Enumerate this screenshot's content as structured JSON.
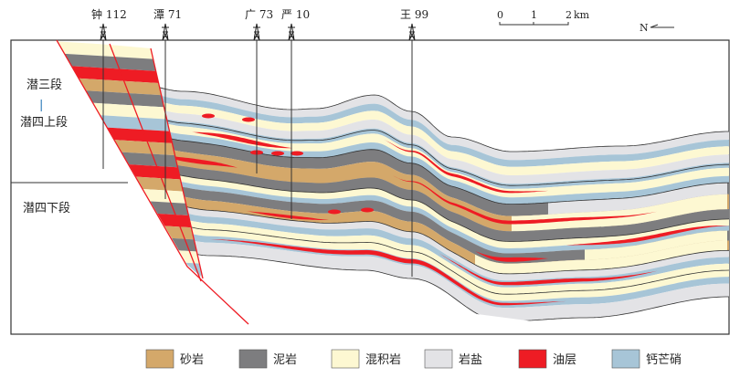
{
  "wells": [
    {
      "name": "钟 112"
    },
    {
      "name": "潭 71"
    },
    {
      "name": "广 73"
    },
    {
      "name": "严 10"
    },
    {
      "name": "王 99"
    }
  ],
  "scale": {
    "ticks": [
      "0",
      "1",
      "2"
    ],
    "unit": "km"
  },
  "north": "N",
  "units": {
    "upper": "潜三段",
    "sep": "|",
    "upper2": "潜四上段",
    "lower": "潜四下段"
  },
  "legend": [
    {
      "label": "砂岩",
      "color": "#d4a86a"
    },
    {
      "label": "泥岩",
      "color": "#7d7d7f"
    },
    {
      "label": "混积岩",
      "color": "#fdf8d2"
    },
    {
      "label": "岩盐",
      "color": "#e3e3e6"
    },
    {
      "label": "油层",
      "color": "#ee1c24"
    },
    {
      "label": "钙芒硝",
      "color": "#a7c5d7"
    }
  ]
}
